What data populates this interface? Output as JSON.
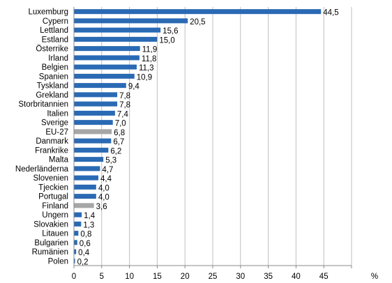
{
  "chart_data": {
    "type": "bar",
    "orientation": "horizontal",
    "categories": [
      "Luxemburg",
      "Cypern",
      "Lettland",
      "Estland",
      "Österrike",
      "Irland",
      "Belgien",
      "Spanien",
      "Tyskland",
      "Grekland",
      "Storbritannien",
      "Italien",
      "Sverige",
      "EU-27",
      "Danmark",
      "Frankrike",
      "Malta",
      "Nederländerna",
      "Slovenien",
      "Tjeckien",
      "Portugal",
      "Finland",
      "Ungern",
      "Slovakien",
      "Litauen",
      "Bulgarien",
      "Rumänien",
      "Polen"
    ],
    "values": [
      44.5,
      20.5,
      15.6,
      15.0,
      11.9,
      11.8,
      11.3,
      10.9,
      9.4,
      7.8,
      7.8,
      7.4,
      7.0,
      6.8,
      6.7,
      6.2,
      5.3,
      4.7,
      4.4,
      4.0,
      4.0,
      3.6,
      1.4,
      1.3,
      0.8,
      0.6,
      0.4,
      0.2
    ],
    "value_labels": [
      "44,5",
      "20,5",
      "15,6",
      "15,0",
      "11,9",
      "11,8",
      "11,3",
      "10,9",
      "9,4",
      "7,8",
      "7,8",
      "7,4",
      "7,0",
      "6,8",
      "6,7",
      "6,2",
      "5,3",
      "4,7",
      "4,4",
      "4,0",
      "4,0",
      "3,6",
      "1,4",
      "1,3",
      "0,8",
      "0,6",
      "0,4",
      "0,2"
    ],
    "highlighted": [
      "EU-27",
      "Finland"
    ],
    "xlim": [
      0,
      50
    ],
    "xticks": [
      0,
      5,
      10,
      15,
      20,
      25,
      30,
      35,
      40,
      45
    ],
    "unit": "%",
    "grid": true,
    "colors": {
      "bar": "#2a6ab4",
      "highlight": "#a6a6a6",
      "grid": "#bfbfbf",
      "axis": "#888888"
    }
  }
}
